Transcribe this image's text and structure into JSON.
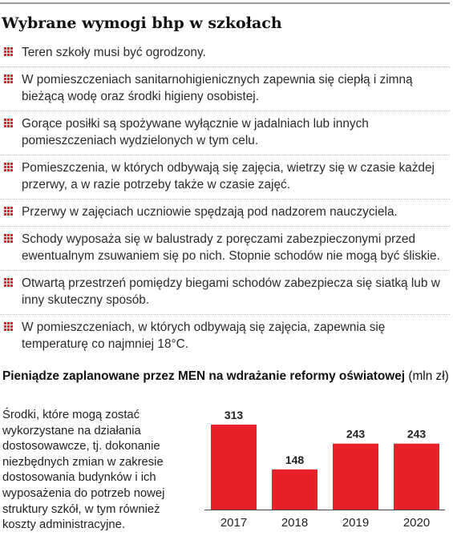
{
  "title": "Wybrane wymogi bhp w szkołach",
  "requirements": [
    "Teren szkoły musi być ogrodzony.",
    "W pomieszczeniach sanitarnohigienicznych zapewnia się ciepłą i zimną bieżącą wodę oraz środki higieny osobistej.",
    "Gorące posiłki są spożywane wyłącznie w jadalniach lub innych pomieszczeniach wydzielonych w tym celu.",
    "Pomieszczenia, w których odbywają się zajęcia, wietrzy się w czasie każdej przerwy, a w razie potrzeby także w czasie zajęć.",
    "Przerwy w zajęciach uczniowie spędzają pod nadzorem nauczyciela.",
    "Schody wyposaża się w balustrady z poręczami zabezpieczonymi przed ewentualnym zsuwaniem się po nich. Stopnie schodów nie mogą być śliskie.",
    "Otwartą przestrzeń pomiędzy biegami schodów zabezpiecza się siatką lub w inny skuteczny sposób.",
    "W pomieszczeniach, w których odbywają się zajęcia, zapewnia się temperaturę co najmniej 18°C."
  ],
  "chart_data": {
    "type": "bar",
    "title": "Pieniądze zaplanowane przez MEN na wdrażanie reformy oświatowej",
    "unit": "(mln zł)",
    "categories": [
      "2017",
      "2018",
      "2019",
      "2020"
    ],
    "values": [
      313,
      148,
      243,
      243
    ],
    "data_labels": [
      "313",
      "148",
      "243",
      "243"
    ],
    "ylim": [
      0,
      350
    ],
    "grid": false,
    "bar_color": "#e8202a"
  },
  "note": "Środki, które mogą zostać wykorzystane na działania dostosowawcze, tj. dokonanie niezbędnych zmian w zakresie dostosowania budynków i ich wyposażenia do potrzeb nowej struktury szkół, w tym również koszty administracyjne.",
  "colors": {
    "accent": "#e0232c",
    "rule": "#9a9a9a",
    "divider": "#bdbdbd"
  }
}
